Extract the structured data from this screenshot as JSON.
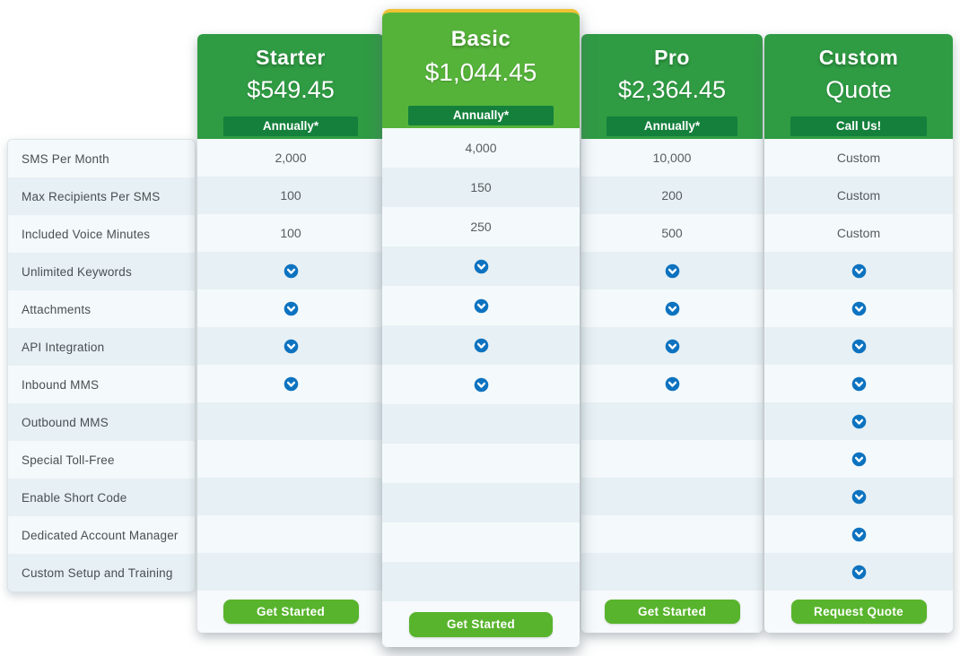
{
  "features": [
    "SMS Per Month",
    "Max Recipients Per SMS",
    "Included Voice Minutes",
    "Unlimited Keywords",
    "Attachments",
    "API Integration",
    "Inbound MMS",
    "Outbound MMS",
    "Special Toll-Free",
    "Enable Short Code",
    "Dedicated Account Manager",
    "Custom Setup and Training"
  ],
  "plans": [
    {
      "id": "starter",
      "name": "Starter",
      "price": "$549.45",
      "badge": "Annually*",
      "button_label": "Get Started",
      "featured": false,
      "values": [
        "2,000",
        "100",
        "100",
        "check",
        "check",
        "check",
        "check",
        "",
        "",
        "",
        "",
        ""
      ]
    },
    {
      "id": "basic",
      "name": "Basic",
      "price": "$1,044.45",
      "badge": "Annually*",
      "button_label": "Get Started",
      "featured": true,
      "values": [
        "4,000",
        "150",
        "250",
        "check",
        "check",
        "check",
        "check",
        "",
        "",
        "",
        "",
        ""
      ]
    },
    {
      "id": "pro",
      "name": "Pro",
      "price": "$2,364.45",
      "badge": "Annually*",
      "button_label": "Get Started",
      "featured": false,
      "values": [
        "10,000",
        "200",
        "500",
        "check",
        "check",
        "check",
        "check",
        "",
        "",
        "",
        "",
        ""
      ]
    },
    {
      "id": "custom",
      "name": "Custom",
      "price": "Quote",
      "badge": "Call Us!",
      "button_label": "Request Quote",
      "featured": false,
      "values": [
        "Custom",
        "Custom",
        "Custom",
        "check",
        "check",
        "check",
        "check",
        "check",
        "check",
        "check",
        "check",
        "check"
      ]
    }
  ],
  "icons": {
    "feature_included": "chevron-down-circle-icon"
  },
  "colors": {
    "green": "#2f9b43",
    "light-green": "#55b33a",
    "badge-green": "#14803c",
    "button-green": "#58b42c",
    "gold": "#f1c233",
    "icon-blue": "#0d73c0",
    "stripe-dark": "#e7f0f4",
    "stripe-light": "#f4f9fb"
  }
}
